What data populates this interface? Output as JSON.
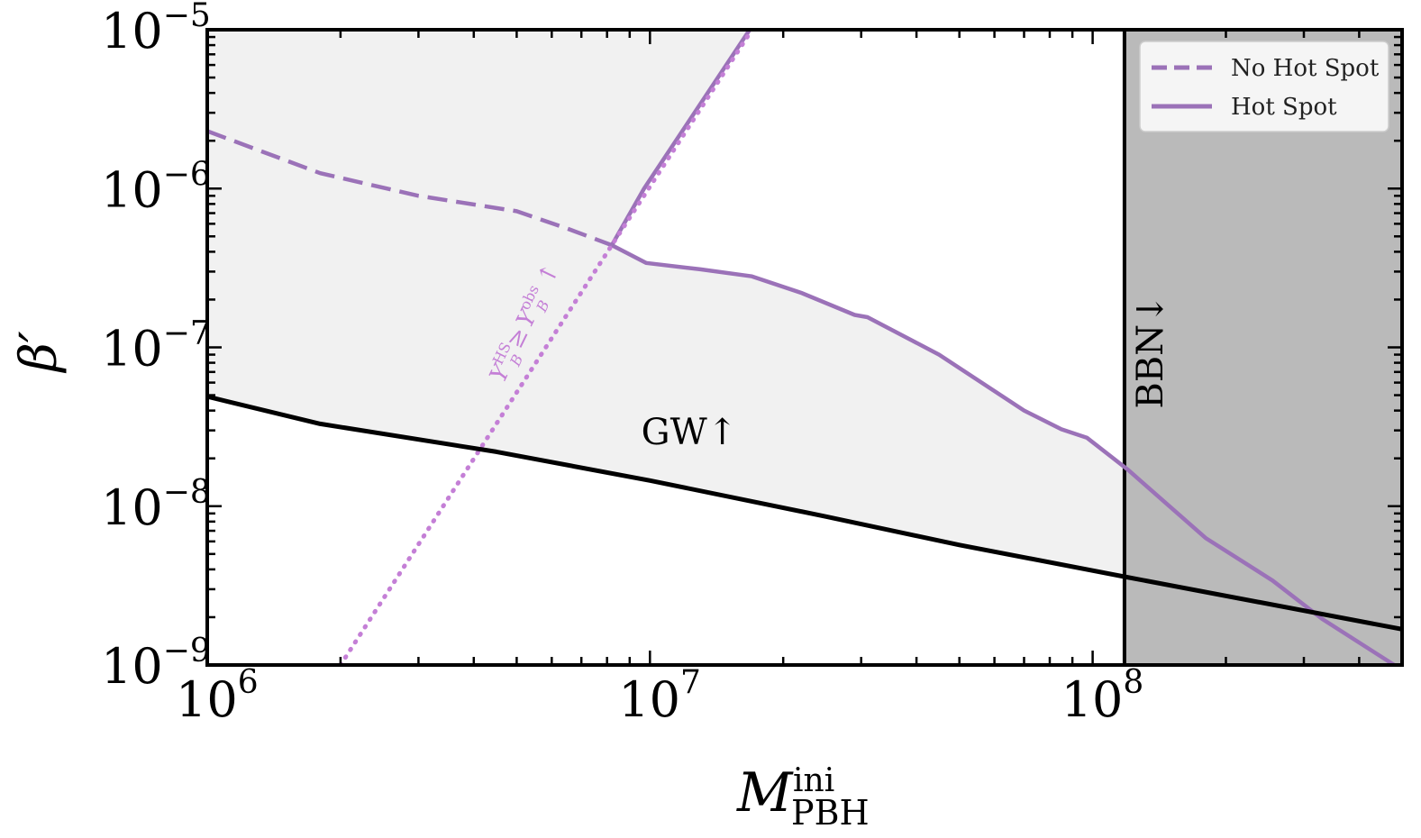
{
  "chart_data": {
    "type": "line",
    "xscale": "log",
    "yscale": "log",
    "xlim": [
      1000000,
      500000000
    ],
    "ylim": [
      1e-09,
      1e-05
    ],
    "x_ticks": [
      {
        "value": 1000000,
        "base": "10",
        "exp": "6"
      },
      {
        "value": 10000000,
        "base": "10",
        "exp": "7"
      },
      {
        "value": 100000000,
        "base": "10",
        "exp": "8"
      }
    ],
    "y_ticks": [
      {
        "value": 1e-09,
        "base": "10",
        "exp": "−9"
      },
      {
        "value": 1e-08,
        "base": "10",
        "exp": "−8"
      },
      {
        "value": 1e-07,
        "base": "10",
        "exp": "−7"
      },
      {
        "value": 1e-06,
        "base": "10",
        "exp": "−6"
      },
      {
        "value": 1e-05,
        "base": "10",
        "exp": "−5"
      }
    ],
    "xlabel": {
      "main": "M",
      "sup": "ini",
      "sub": "PBH"
    },
    "ylabel": "β′",
    "legend": {
      "position": "top-right",
      "entries": [
        {
          "label": "No Hot Spot",
          "style": "dashed",
          "color": "#9b72b8"
        },
        {
          "label": "Hot Spot",
          "style": "solid",
          "color": "#9b72b8"
        }
      ]
    },
    "series": [
      {
        "name": "No Hot Spot",
        "style": "dashed",
        "color": "#9b72b8",
        "points": [
          [
            1000000,
            2.3e-06
          ],
          [
            1800000,
            1.25e-06
          ],
          [
            3000000,
            9e-07
          ],
          [
            5000000,
            7.2e-07
          ],
          [
            6500000,
            5.6e-07
          ],
          [
            8200000,
            4.4e-07
          ]
        ]
      },
      {
        "name": "Hot Spot",
        "style": "solid",
        "color": "#9b72b8",
        "points": [
          [
            8200000,
            4.4e-07
          ],
          [
            9700000,
            1e-06
          ],
          [
            16800000,
            1e-05
          ],
          [
            8200000,
            4.4e-07
          ],
          [
            9800000,
            3.4e-07
          ],
          [
            13000000,
            3.1e-07
          ],
          [
            17000000,
            2.8e-07
          ],
          [
            22000000,
            2.2e-07
          ],
          [
            29000000,
            1.6e-07
          ],
          [
            31000000,
            1.55e-07
          ],
          [
            45000000,
            9e-08
          ],
          [
            70000000,
            4e-08
          ],
          [
            85000000,
            3.05e-08
          ],
          [
            97000000,
            2.7e-08
          ],
          [
            120000000,
            1.7e-08
          ],
          [
            180000000,
            6.3e-09
          ],
          [
            255000000,
            3.4e-09
          ],
          [
            330000000,
            1.95e-09
          ],
          [
            480000000,
            1e-09
          ]
        ]
      },
      {
        "style": "dotted",
        "color": "#c47fd6",
        "points": [
          [
            2000000,
            1e-09
          ],
          [
            8200000,
            4.4e-07
          ],
          [
            17000000,
            1e-05
          ]
        ]
      },
      {
        "style": "solid",
        "color": "#000000",
        "points": [
          [
            1000000,
            4.9e-08
          ],
          [
            1800000,
            3.3e-08
          ],
          [
            4500000,
            2.2e-08
          ],
          [
            10000000,
            1.45e-08
          ],
          [
            25000000,
            8.6e-09
          ],
          [
            50000000,
            5.7e-09
          ],
          [
            118000000,
            3.6e-09
          ],
          [
            500000000,
            1.68e-09
          ]
        ]
      }
    ],
    "regions": [
      {
        "fill": "#f1f1f1",
        "boundary": "between black line and purple curves"
      },
      {
        "fill": "#bababa",
        "x_from": 118000000,
        "x_to": 500000000
      }
    ],
    "annotations": [
      {
        "text": "GW↑",
        "x": 11000000,
        "y": 2.1e-08
      },
      {
        "text": "BBN↓",
        "x": 135000000,
        "y": 2e-07,
        "rotation": -90
      },
      {
        "text_parts": [
          "Y",
          "HS",
          "B",
          "≥",
          "Y",
          "obs",
          "B",
          "↑"
        ],
        "x": 3800000,
        "y": 3e-07,
        "rotation": -64
      }
    ],
    "grid": false
  }
}
